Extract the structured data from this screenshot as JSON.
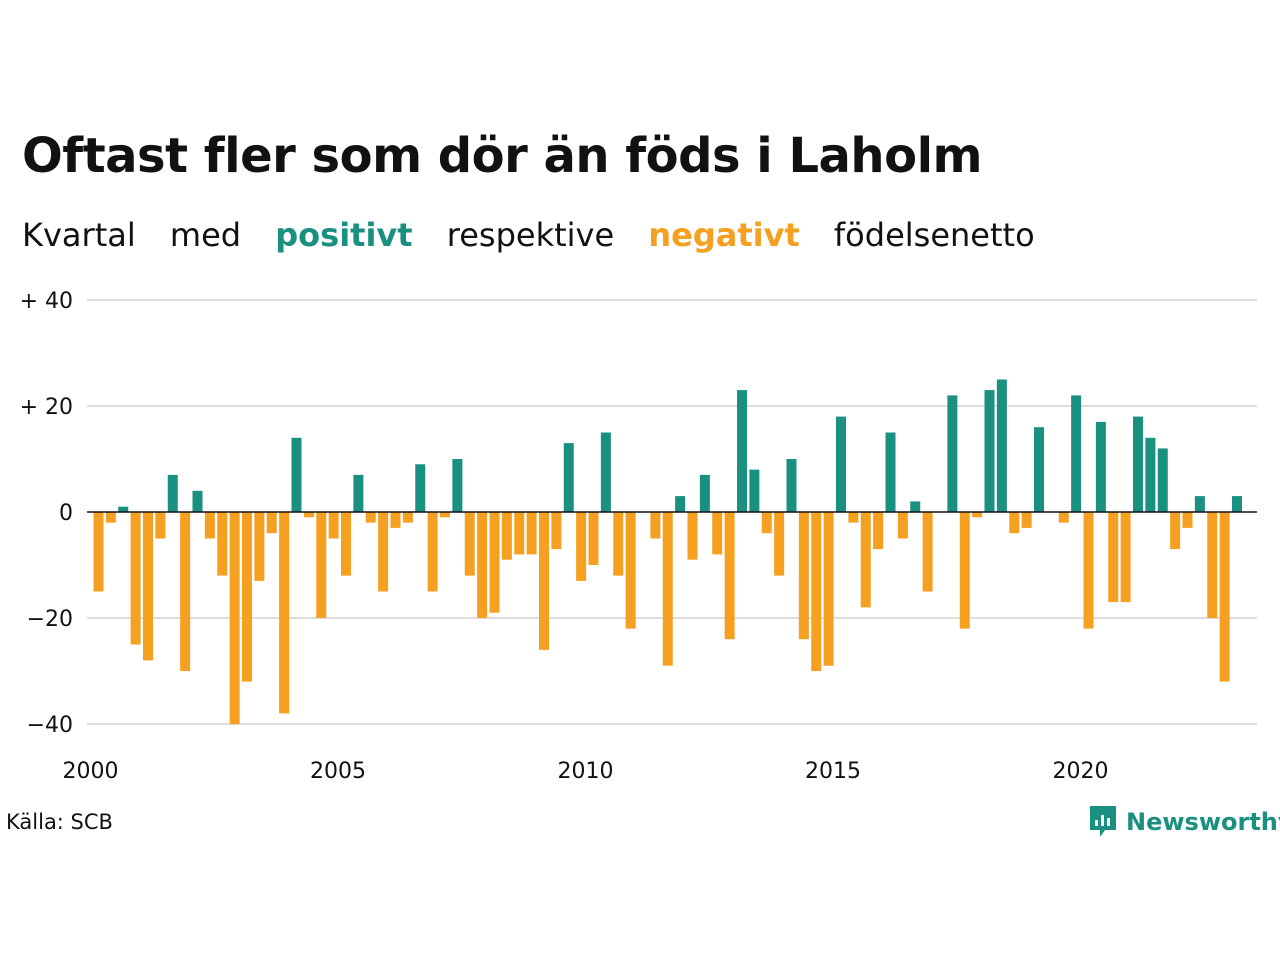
{
  "title": "Oftast fler som dör än föds i Laholm",
  "subtitle": {
    "part1": "Kvartal",
    "part2": "med",
    "positive_word": "positivt",
    "part3": "respektive",
    "negative_word": "negativt",
    "part4": "födelsenetto"
  },
  "source": "Källa: SCB",
  "brand": "Newsworthy",
  "colors": {
    "positive": "#1a9080",
    "negative": "#f5a020",
    "grid": "#dddddd"
  },
  "chart_data": {
    "type": "bar",
    "x_start": "2000 Q1",
    "x_ticks": [
      "2000",
      "2005",
      "2010",
      "2015",
      "2020"
    ],
    "y_ticks": [
      "+ 40",
      "+ 20",
      "0",
      "−20",
      "−40"
    ],
    "ylim": [
      -40,
      40
    ],
    "values": [
      -15,
      -2,
      1,
      -25,
      -28,
      -5,
      7,
      -30,
      4,
      -5,
      -12,
      -40,
      -32,
      -13,
      -4,
      -38,
      14,
      -1,
      -20,
      -5,
      -12,
      7,
      -2,
      -15,
      -3,
      -2,
      9,
      -15,
      -1,
      10,
      -12,
      -20,
      -19,
      -9,
      -8,
      -8,
      -26,
      -7,
      13,
      -13,
      -10,
      15,
      -12,
      -22,
      0,
      -5,
      -29,
      3,
      -9,
      7,
      -8,
      -24,
      23,
      8,
      -4,
      -12,
      10,
      -24,
      -30,
      -29,
      18,
      -2,
      -18,
      -7,
      15,
      -5,
      2,
      -15,
      0,
      22,
      -22,
      -1,
      23,
      25,
      -4,
      -3,
      16,
      0,
      -2,
      22,
      -22,
      17,
      -17,
      -17,
      18,
      14,
      12,
      -7,
      -3,
      3,
      -20,
      -32,
      3
    ]
  }
}
